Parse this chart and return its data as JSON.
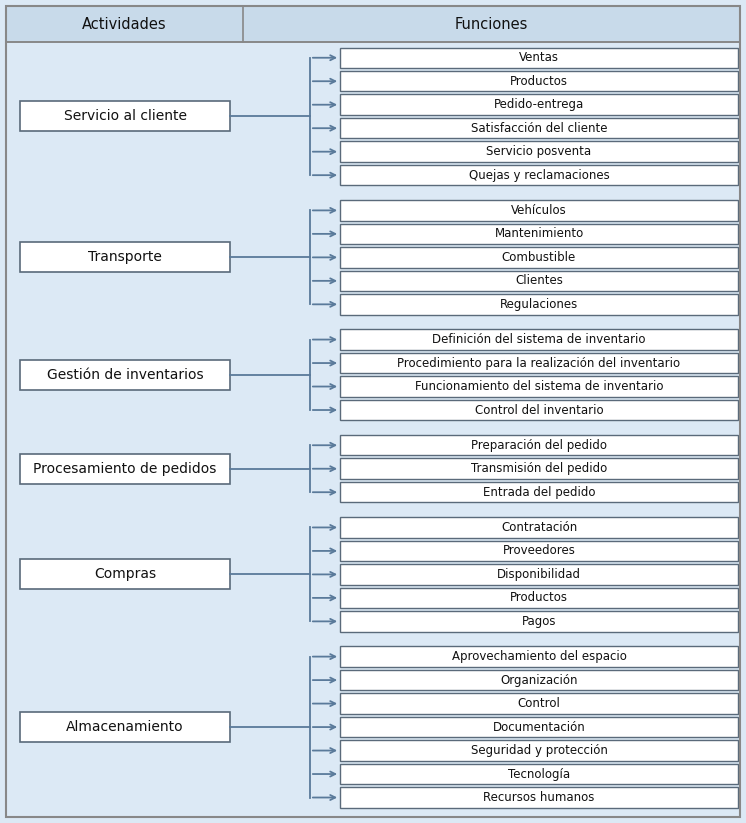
{
  "header_actividades": "Actividades",
  "header_funciones": "Funciones",
  "background_color": "#dce9f5",
  "header_bg_color": "#c8daea",
  "box_edge_color": "#5a6a7a",
  "arrow_color": "#5a7a9a",
  "text_color": "#111111",
  "activities": [
    {
      "name": "Servicio al cliente",
      "functions": [
        "Ventas",
        "Productos",
        "Pedido-entrega",
        "Satisfacción del cliente",
        "Servicio posventa",
        "Quejas y reclamaciones"
      ]
    },
    {
      "name": "Transporte",
      "functions": [
        "Vehículos",
        "Mantenimiento",
        "Combustible",
        "Clientes",
        "Regulaciones"
      ]
    },
    {
      "name": "Gestión de inventarios",
      "functions": [
        "Definición del sistema de inventario",
        "Procedimiento para la realización del inventario",
        "Funcionamiento del sistema de inventario",
        "Control del inventario"
      ]
    },
    {
      "name": "Procesamiento de pedidos",
      "functions": [
        "Preparación del pedido",
        "Transmisión del pedido",
        "Entrada del pedido"
      ]
    },
    {
      "name": "Compras",
      "functions": [
        "Contratación",
        "Proveedores",
        "Disponibilidad",
        "Productos",
        "Pagos"
      ]
    },
    {
      "name": "Almacenamiento",
      "functions": [
        "Aprovechamiento del espacio",
        "Organización",
        "Control",
        "Documentación",
        "Seguridad y protección",
        "Tecnología",
        "Recursos humanos"
      ]
    }
  ]
}
